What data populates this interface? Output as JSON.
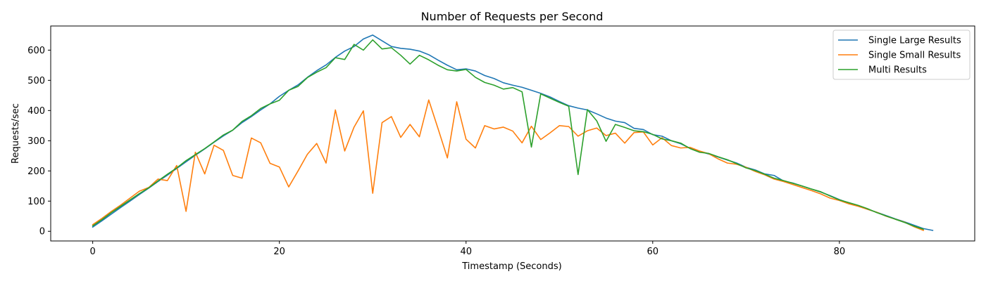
{
  "chart_data": {
    "type": "line",
    "title": "Number of Requests per Second",
    "xlabel": "Timestamp (Seconds)",
    "ylabel": "Requests/sec",
    "xlim": [
      -4.5,
      94.5
    ],
    "ylim": [
      -32,
      680
    ],
    "xticks": [
      0,
      20,
      40,
      60,
      80
    ],
    "yticks": [
      0,
      100,
      200,
      300,
      400,
      500,
      600
    ],
    "grid": false,
    "legend_position": "top-right",
    "series": [
      {
        "name": "Single Large Results",
        "color": "#1f77b4",
        "x": [
          0,
          1,
          2,
          3,
          4,
          5,
          6,
          7,
          8,
          9,
          10,
          11,
          12,
          13,
          14,
          15,
          16,
          17,
          18,
          19,
          20,
          21,
          22,
          23,
          24,
          25,
          26,
          27,
          28,
          29,
          30,
          31,
          32,
          33,
          34,
          35,
          36,
          37,
          38,
          39,
          40,
          41,
          42,
          43,
          44,
          45,
          46,
          47,
          48,
          49,
          50,
          51,
          52,
          53,
          54,
          55,
          56,
          57,
          58,
          59,
          60,
          61,
          62,
          63,
          64,
          65,
          66,
          67,
          68,
          69,
          70,
          71,
          72,
          73,
          74,
          75,
          76,
          77,
          78,
          79,
          80,
          81,
          82,
          83,
          84,
          85,
          86,
          87,
          88,
          89,
          90
        ],
        "y": [
          14,
          35,
          57,
          79,
          100,
          122,
          143,
          165,
          186,
          208,
          230,
          252,
          273,
          295,
          316,
          335,
          360,
          380,
          402,
          422,
          447,
          467,
          485,
          510,
          532,
          551,
          576,
          597,
          612,
          637,
          650,
          631,
          612,
          606,
          603,
          597,
          585,
          567,
          550,
          535,
          538,
          531,
          516,
          506,
          492,
          484,
          477,
          467,
          457,
          445,
          430,
          416,
          408,
          402,
          389,
          375,
          365,
          360,
          341,
          337,
          320,
          315,
          300,
          290,
          275,
          265,
          256,
          246,
          236,
          226,
          212,
          203,
          190,
          185,
          167,
          160,
          150,
          140,
          130,
          118,
          105,
          94,
          85,
          73,
          63,
          52,
          41,
          31,
          20,
          9,
          3
        ]
      },
      {
        "name": "Single Small Results",
        "color": "#ff7f0e",
        "x": [
          0,
          1,
          2,
          3,
          4,
          5,
          6,
          7,
          8,
          9,
          10,
          11,
          12,
          13,
          14,
          15,
          16,
          17,
          18,
          19,
          20,
          21,
          22,
          23,
          24,
          25,
          26,
          27,
          28,
          29,
          30,
          31,
          32,
          33,
          34,
          35,
          36,
          37,
          38,
          39,
          40,
          41,
          42,
          43,
          44,
          45,
          46,
          47,
          48,
          49,
          50,
          51,
          52,
          53,
          54,
          55,
          56,
          57,
          58,
          59,
          60,
          61,
          62,
          63,
          64,
          65,
          66,
          67,
          68,
          69,
          70,
          71,
          72,
          73,
          74,
          75,
          76,
          77,
          78,
          79,
          80,
          81,
          82,
          83,
          84,
          85,
          86,
          87,
          88,
          89
        ],
        "y": [
          22,
          43,
          66,
          87,
          110,
          133,
          145,
          173,
          168,
          218,
          66,
          262,
          190,
          285,
          268,
          185,
          176,
          309,
          293,
          225,
          213,
          147,
          200,
          255,
          291,
          226,
          402,
          266,
          345,
          399,
          126,
          360,
          380,
          311,
          354,
          313,
          435,
          340,
          243,
          429,
          305,
          276,
          350,
          339,
          345,
          332,
          293,
          348,
          304,
          326,
          350,
          347,
          315,
          333,
          342,
          317,
          325,
          292,
          327,
          329,
          286,
          310,
          284,
          276,
          278,
          266,
          257,
          240,
          226,
          222,
          212,
          198,
          187,
          173,
          165,
          155,
          145,
          135,
          124,
          110,
          102,
          91,
          83,
          73,
          63,
          50,
          40,
          30,
          15,
          3
        ]
      },
      {
        "name": "Multi Results",
        "color": "#2ca02c",
        "x": [
          0,
          1,
          2,
          3,
          4,
          5,
          6,
          7,
          8,
          9,
          10,
          11,
          12,
          13,
          14,
          15,
          16,
          17,
          18,
          19,
          20,
          21,
          22,
          23,
          24,
          25,
          26,
          27,
          28,
          29,
          30,
          31,
          32,
          33,
          34,
          35,
          36,
          37,
          38,
          39,
          40,
          41,
          42,
          43,
          44,
          45,
          46,
          47,
          48,
          49,
          50,
          51,
          52,
          53,
          54,
          55,
          56,
          57,
          58,
          59,
          60,
          61,
          62,
          63,
          64,
          65,
          66,
          67,
          68,
          69,
          70,
          71,
          72,
          73,
          74,
          75,
          76,
          77,
          78,
          79,
          80,
          81,
          82,
          83,
          84,
          85,
          86,
          87,
          88,
          89
        ],
        "y": [
          18,
          39,
          62,
          83,
          104,
          125,
          144,
          167,
          189,
          210,
          234,
          254,
          274,
          296,
          319,
          335,
          364,
          383,
          407,
          422,
          434,
          467,
          480,
          509,
          527,
          542,
          575,
          569,
          619,
          600,
          634,
          604,
          608,
          583,
          554,
          583,
          568,
          550,
          535,
          531,
          536,
          510,
          493,
          484,
          471,
          476,
          462,
          279,
          455,
          441,
          427,
          414,
          188,
          403,
          366,
          298,
          354,
          344,
          333,
          330,
          321,
          306,
          300,
          292,
          274,
          262,
          258,
          247,
          237,
          224,
          210,
          201,
          189,
          176,
          168,
          159,
          150,
          140,
          131,
          117,
          104,
          95,
          86,
          75,
          62,
          51,
          40,
          29,
          17,
          7
        ]
      }
    ]
  }
}
